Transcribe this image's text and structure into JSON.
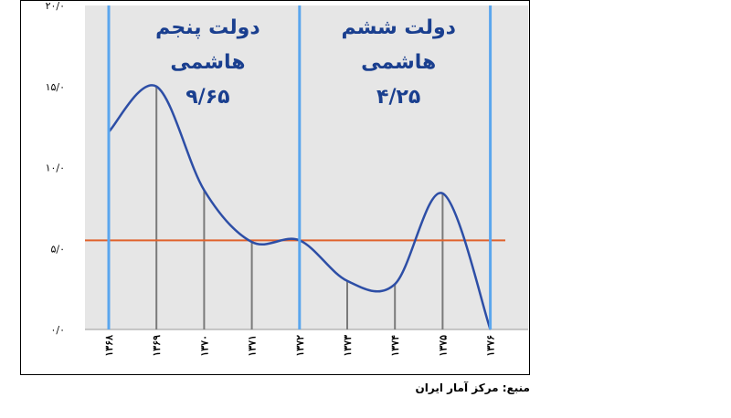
{
  "chart_data": {
    "type": "line",
    "title": "",
    "xlabel": "",
    "ylabel": "",
    "x": [
      "۱۳۶۸",
      "۱۳۶۹",
      "۱۳۷۰",
      "۱۳۷۱",
      "۱۳۷۲",
      "۱۳۷۳",
      "۱۳۷۴",
      "۱۳۷۵",
      "۱۳۷۶"
    ],
    "series": [
      {
        "values": [
          12.2,
          15.0,
          8.6,
          5.4,
          5.5,
          3.0,
          2.8,
          8.4,
          0.0
        ],
        "color": "#2d4ea6"
      }
    ],
    "ylim": [
      0,
      20
    ],
    "yticks": [
      0,
      5,
      10,
      15,
      20
    ],
    "ytick_labels": [
      "۰/۰",
      "۵/۰",
      "۱۰/۰",
      "۱۵/۰",
      "۲۰/۰"
    ],
    "reference_line": {
      "value": 5.5,
      "color": "#e0622c"
    },
    "periods": [
      {
        "label_line1": "دولت پنجم",
        "label_line2": "هاشمی",
        "value": "۹/۶۵",
        "start": "۱۳۶۸",
        "end": "۱۳۷۲"
      },
      {
        "label_line1": "دولت ششم",
        "label_line2": "هاشمی",
        "value": "۴/۲۵",
        "start": "۱۳۷۲",
        "end": "۱۳۷۶"
      }
    ],
    "grid": false,
    "colors": {
      "plot_bg": "#e6e6e6",
      "period_line": "#5aa6ee",
      "drop_line": "#7a7a7a",
      "text_blue": "#1a3f8f"
    }
  },
  "source": "منبع: مرکز آمار ایران"
}
